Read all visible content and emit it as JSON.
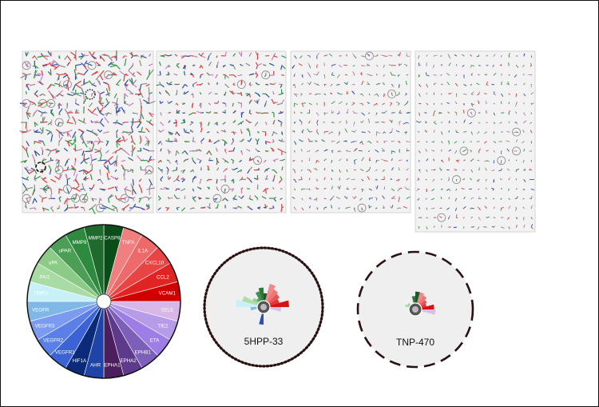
{
  "colors": {
    "panel_bg": "#f2f2f2",
    "panel_border": "#d6d6d6",
    "ring_dark": "#2a1212",
    "wedge_colors": {
      "greens": [
        "#0b4d1a",
        "#1f6b2e",
        "#2e8a3f",
        "#4c9e56",
        "#6db66f",
        "#8cca88",
        "#a9dba4",
        "#c6ebc0"
      ],
      "reds": [
        "#f08080",
        "#ee6a6a",
        "#e84444",
        "#e02424",
        "#d10000"
      ],
      "pinks": [
        "#d8b7e8"
      ],
      "purples": [
        "#b69be8",
        "#9c7ee6",
        "#7c5fb8",
        "#5e3a8c",
        "#4b1f5e",
        "#3b1b4a"
      ],
      "blues": [
        "#0b2b7a",
        "#1d44a6",
        "#3b63d6",
        "#5a80e8",
        "#7a9bf0",
        "#7fb7e6",
        "#a6d6ee",
        "#c7f0f7"
      ]
    }
  },
  "wheel": {
    "labels": [
      "CASP8",
      "TNFA",
      "IL1A",
      "CXCL10",
      "CCL2",
      "VCAM1",
      "SELE",
      "TIE2",
      "ETA",
      "EPHB1",
      "EPHA2",
      "EPHA1",
      "AHR",
      "HIF1A",
      "VEGFR1",
      "VEGFR2",
      "VEGFR3",
      "VEGFR",
      "TIMP3",
      "PAI1",
      "uPA",
      "uPAR",
      "MMP9",
      "MMP2"
    ],
    "wedges": [
      {
        "name": "CASP8",
        "value": 1.0,
        "color": "#0b4d1a"
      },
      {
        "name": "TNFA",
        "value": 1.0,
        "color": "#f08080"
      },
      {
        "name": "IL1A",
        "value": 1.0,
        "color": "#ee6a6a"
      },
      {
        "name": "CXCL10",
        "value": 1.0,
        "color": "#e84444"
      },
      {
        "name": "CCL2",
        "value": 1.0,
        "color": "#e02424"
      },
      {
        "name": "VCAM1",
        "value": 1.0,
        "color": "#d10000"
      },
      {
        "name": "SELE",
        "value": 1.0,
        "color": "#d8b7e8"
      },
      {
        "name": "TIE2",
        "value": 1.0,
        "color": "#b69be8"
      },
      {
        "name": "ETA",
        "value": 1.0,
        "color": "#9c7ee6"
      },
      {
        "name": "EPHB1",
        "value": 1.0,
        "color": "#7c5fb8"
      },
      {
        "name": "EPHA2",
        "value": 1.0,
        "color": "#5e3a8c"
      },
      {
        "name": "EPHA1",
        "value": 1.0,
        "color": "#4b1f5e"
      },
      {
        "name": "AHR",
        "value": 1.0,
        "color": "#1d44a6"
      },
      {
        "name": "HIF1A",
        "value": 1.0,
        "color": "#0b2b7a"
      },
      {
        "name": "VEGFR1",
        "value": 1.0,
        "color": "#3b63d6"
      },
      {
        "name": "VEGFR2",
        "value": 1.0,
        "color": "#5a80e8"
      },
      {
        "name": "VEGFR3",
        "value": 1.0,
        "color": "#7a9bf0"
      },
      {
        "name": "VEGFR",
        "value": 1.0,
        "color": "#7fb7e6"
      },
      {
        "name": "TIMP3",
        "value": 1.0,
        "color": "#c7f0f7"
      },
      {
        "name": "PAI1",
        "value": 1.0,
        "color": "#a9dba4"
      },
      {
        "name": "uPA",
        "value": 1.0,
        "color": "#8cca88"
      },
      {
        "name": "uPAR",
        "value": 1.0,
        "color": "#4c9e56"
      },
      {
        "name": "MMP9",
        "value": 1.0,
        "color": "#2e8a3f"
      },
      {
        "name": "MMP2",
        "value": 1.0,
        "color": "#1f6b2e"
      }
    ]
  },
  "compounds": [
    {
      "label": "5HPP-33",
      "ring_style": "dotted",
      "petals": [
        {
          "gene": "CASP8",
          "value": 0.3
        },
        {
          "gene": "MMP2",
          "value": 0.42
        },
        {
          "gene": "MMP9",
          "value": 0.35
        },
        {
          "gene": "uPAR",
          "value": 0.22
        },
        {
          "gene": "uPA",
          "value": 0.28
        },
        {
          "gene": "PAI1",
          "value": 0.48
        },
        {
          "gene": "TIMP3",
          "value": 0.6
        },
        {
          "gene": "TNFA",
          "value": 0.52
        },
        {
          "gene": "IL1A",
          "value": 0.44
        },
        {
          "gene": "CXCL10",
          "value": 0.4
        },
        {
          "gene": "CCL2",
          "value": 0.35
        },
        {
          "gene": "VCAM1",
          "value": 0.55
        },
        {
          "gene": "SELE",
          "value": 0.38
        },
        {
          "gene": "AHR",
          "value": 0.38
        },
        {
          "gene": "VEGFR",
          "value": 0.28
        }
      ]
    },
    {
      "label": "TNP-470",
      "ring_style": "dashed",
      "petals": [
        {
          "gene": "CASP8",
          "value": 0.4
        },
        {
          "gene": "MMP2",
          "value": 0.3
        },
        {
          "gene": "uPA",
          "value": 0.2
        },
        {
          "gene": "PAI1",
          "value": 0.24
        },
        {
          "gene": "TNFA",
          "value": 0.4
        },
        {
          "gene": "IL1A",
          "value": 0.36
        },
        {
          "gene": "CXCL10",
          "value": 0.3
        },
        {
          "gene": "CCL2",
          "value": 0.26
        },
        {
          "gene": "VCAM1",
          "value": 0.42
        },
        {
          "gene": "SELE",
          "value": 0.45
        }
      ]
    }
  ],
  "grid_panels": [
    {
      "rows": 17,
      "cols": 16,
      "density": 1.0,
      "circled": 16,
      "highlight": 2
    },
    {
      "rows": 17,
      "cols": 16,
      "density": 0.55,
      "circled": 5,
      "highlight": 0
    },
    {
      "rows": 17,
      "cols": 16,
      "density": 0.35,
      "circled": 3,
      "highlight": 0
    },
    {
      "rows": 19,
      "cols": 16,
      "density": 0.18,
      "circled": 7,
      "highlight": 0
    }
  ]
}
